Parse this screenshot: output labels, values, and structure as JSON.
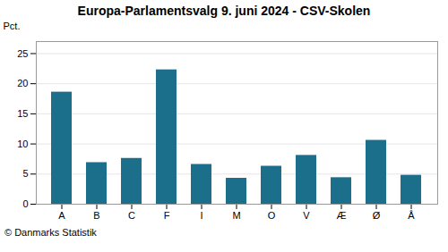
{
  "chart_data": {
    "type": "bar",
    "title": "Europa-Parlamentsvalg 9. juni 2024 - CSV-Skolen",
    "categories": [
      "A",
      "B",
      "C",
      "F",
      "I",
      "M",
      "O",
      "V",
      "Æ",
      "Ø",
      "Å"
    ],
    "values": [
      18.6,
      6.9,
      7.6,
      22.3,
      6.6,
      4.3,
      6.3,
      8.1,
      4.4,
      10.6,
      4.8
    ],
    "color": "#1b6f8a",
    "ylabel": "Pct.",
    "ylim": [
      0,
      27
    ],
    "yticks": [
      0,
      5,
      10,
      15,
      20,
      25
    ],
    "grid": true,
    "caption": "© Danmarks Statistik"
  }
}
